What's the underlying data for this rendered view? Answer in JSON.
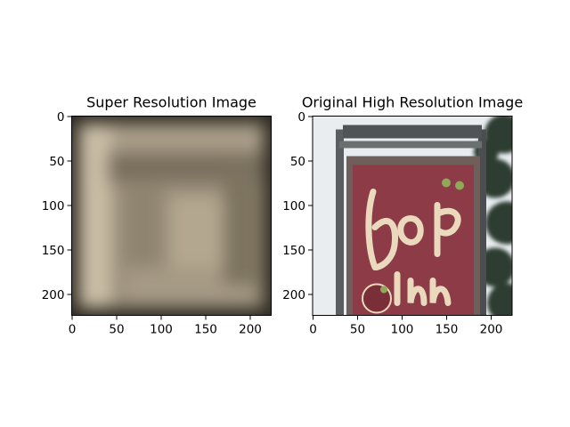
{
  "chart_data": [
    {
      "type": "image",
      "title": "Super Resolution Image",
      "xlim": [
        -0.5,
        223.5
      ],
      "ylim": [
        223.5,
        -0.5
      ],
      "xticks": [
        0,
        50,
        100,
        150,
        200
      ],
      "yticks": [
        0,
        50,
        100,
        150,
        200
      ]
    },
    {
      "type": "image",
      "title": "Original High Resolution Image",
      "xlim": [
        -0.5,
        223.5
      ],
      "ylim": [
        223.5,
        -0.5
      ],
      "xticks": [
        0,
        50,
        100,
        150,
        200
      ],
      "yticks": [
        0,
        50,
        100,
        150,
        200
      ]
    }
  ]
}
